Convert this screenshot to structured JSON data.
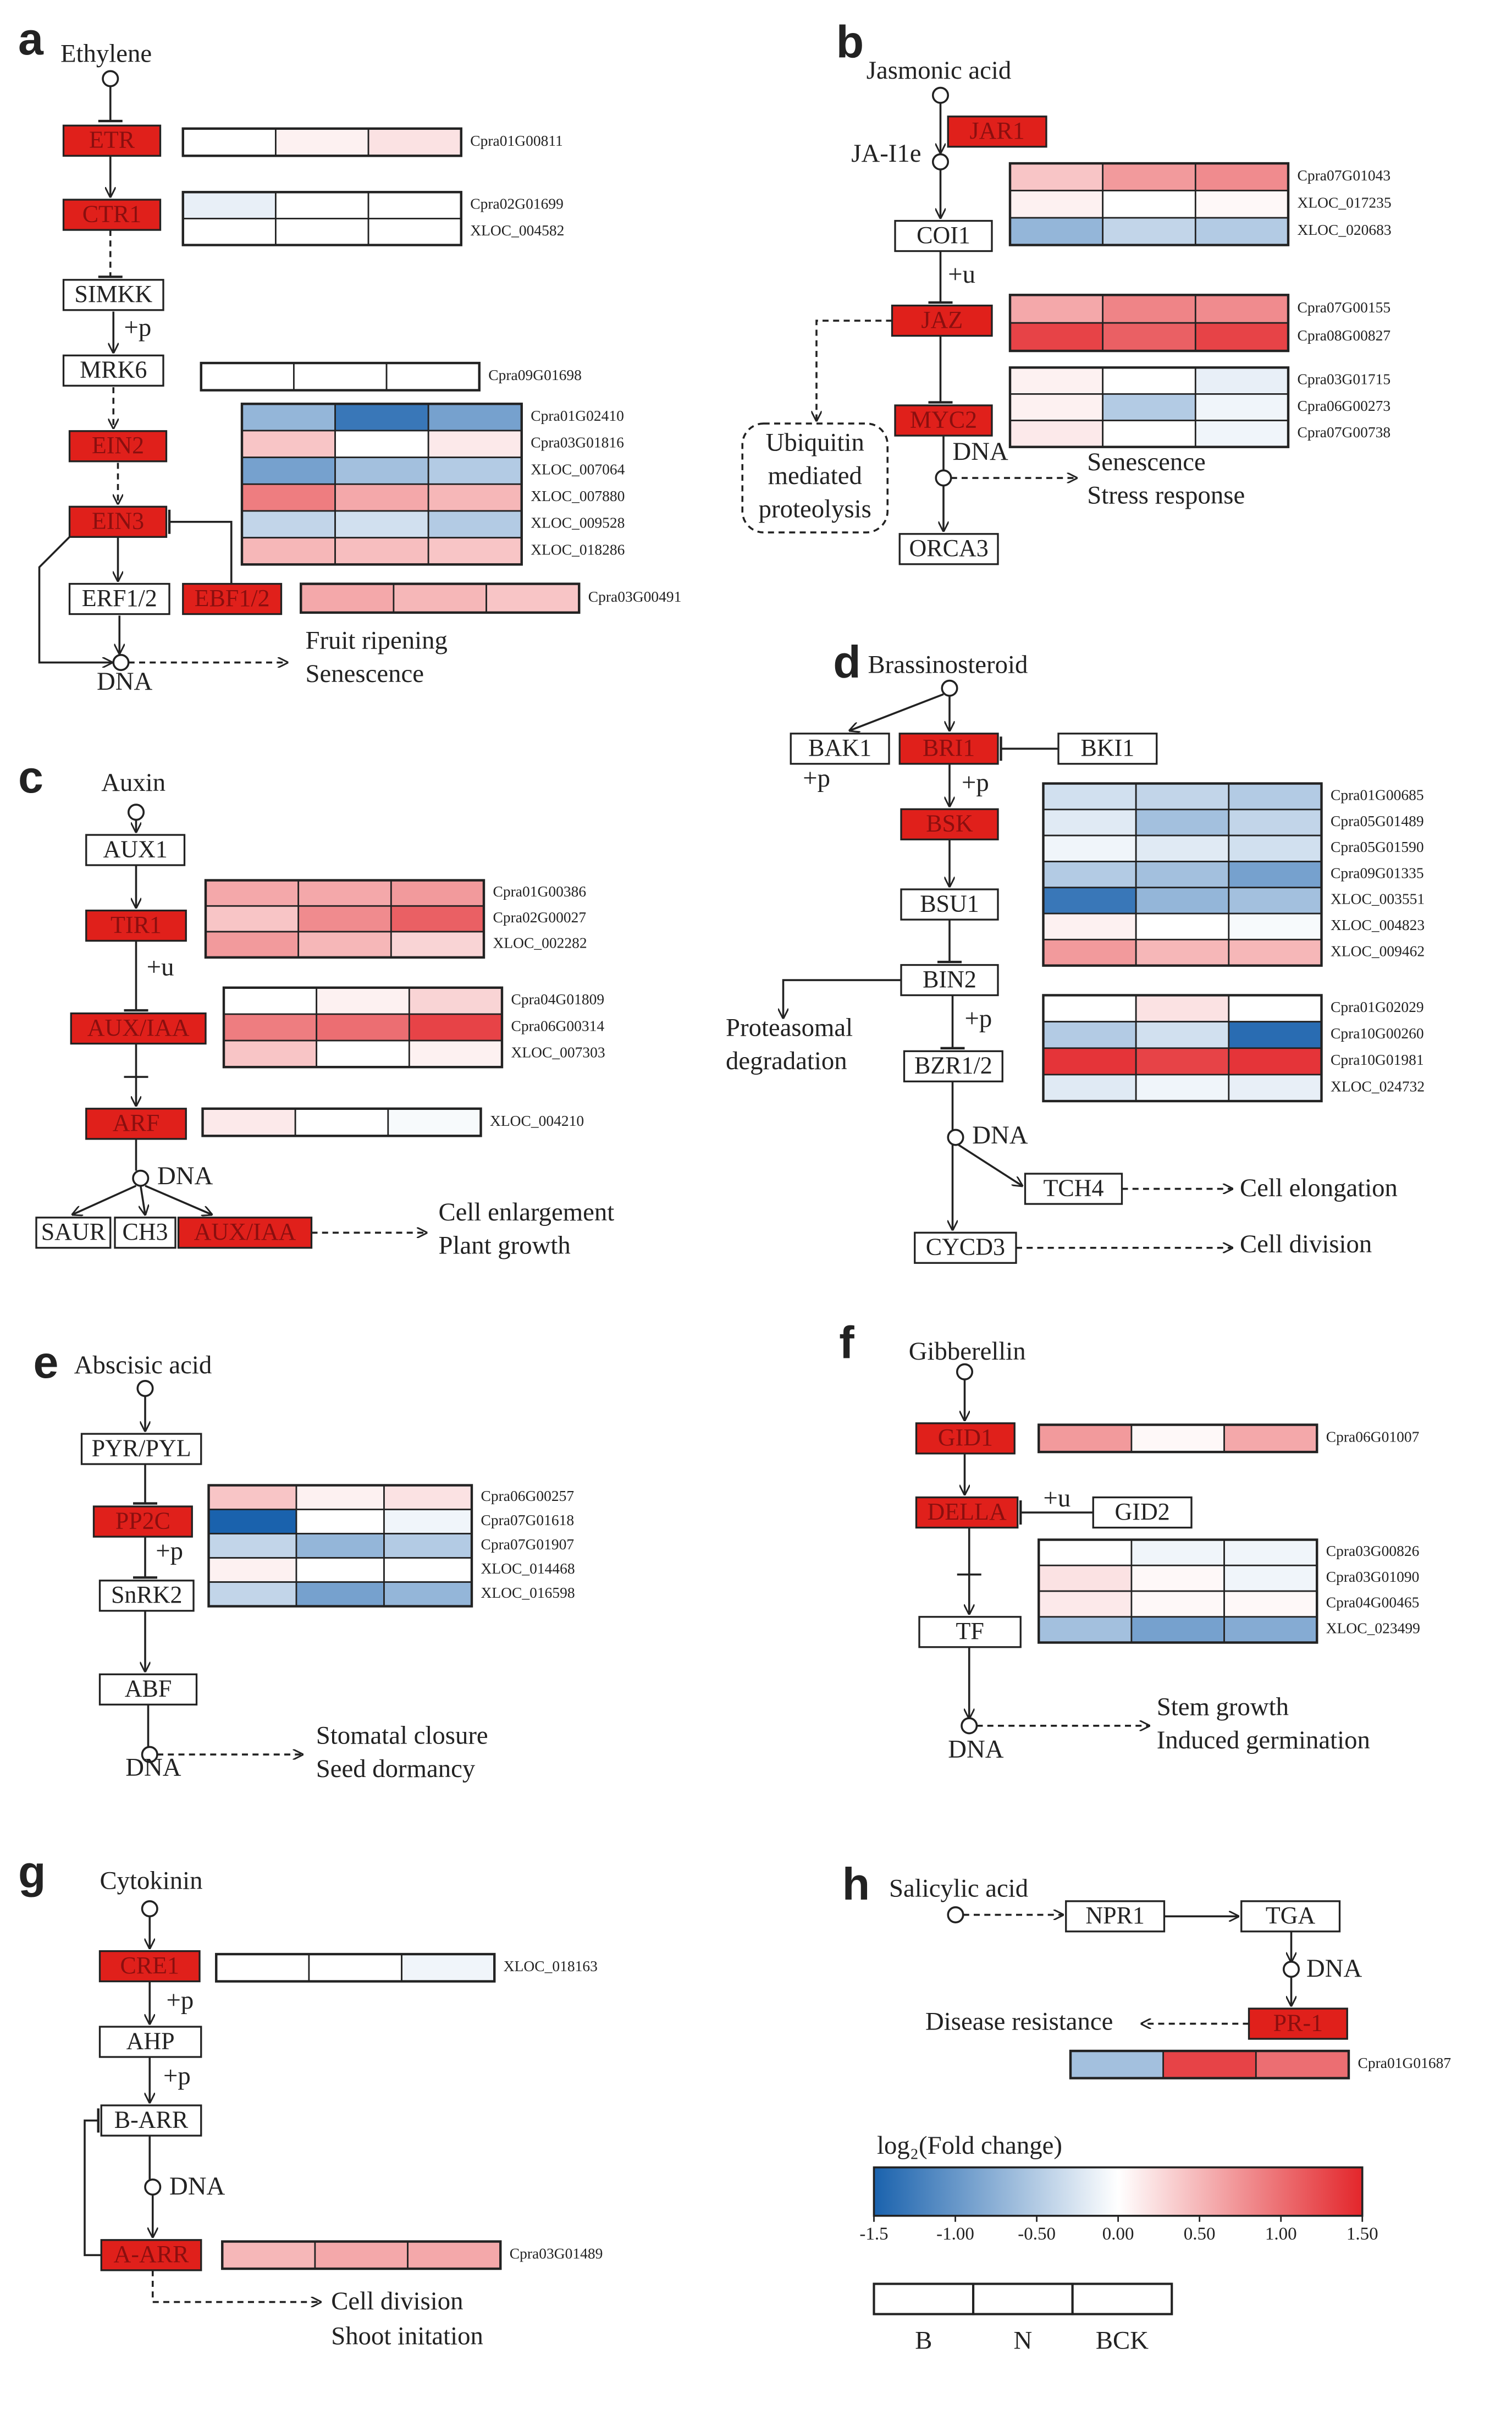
{
  "panels": [
    {
      "letter": "a",
      "labels": [
        "Ethylene",
        "+p",
        "DNA",
        "Fruit ripening",
        "Senescence"
      ],
      "nodes": [
        "ETR",
        "CTR1",
        "SIMKK",
        "MRK6",
        "EIN2",
        "EIN3",
        "ERF1/2",
        "EBF1/2"
      ],
      "heatmaps": [
        {
          "genes": [
            "Cpra01G00811"
          ],
          "values": [
            [
              0,
              0.1,
              0.2
            ]
          ]
        },
        {
          "genes": [
            "Cpra02G01699",
            "XLOC_004582"
          ],
          "values": [
            [
              -0.15,
              0,
              0
            ],
            [
              0,
              0,
              0
            ]
          ]
        },
        {
          "genes": [
            "Cpra09G01698"
          ],
          "values": [
            [
              0,
              0,
              0
            ]
          ]
        },
        {
          "genes": [
            "Cpra01G02410",
            "Cpra03G01816",
            "XLOC_007064",
            "XLOC_007880",
            "XLOC_009528",
            "XLOC_018286"
          ],
          "values": [
            [
              -0.7,
              -1.3,
              -0.9
            ],
            [
              0.4,
              0,
              0.15
            ],
            [
              -0.9,
              -0.6,
              -0.5
            ],
            [
              0.9,
              0.6,
              0.5
            ],
            [
              -0.4,
              -0.3,
              -0.5
            ],
            [
              0.5,
              0.45,
              0.4
            ]
          ]
        },
        {
          "genes": [
            "Cpra03G00491"
          ],
          "values": [
            [
              0.6,
              0.5,
              0.4
            ]
          ]
        }
      ]
    },
    {
      "letter": "b",
      "labels": [
        "Jasmonic acid",
        "JA-I1e",
        "+u",
        "Ubiquitin",
        "mediated",
        "proteolysis",
        "DNA",
        "Senescence",
        "Stress response"
      ],
      "nodes": [
        "JAR1",
        "COI1",
        "JAZ",
        "MYC2",
        "ORCA3"
      ],
      "heatmaps": [
        {
          "genes": [
            "Cpra07G01043",
            "XLOC_017235",
            "XLOC_020683"
          ],
          "values": [
            [
              0.4,
              0.7,
              0.8
            ],
            [
              0.1,
              0,
              0.05
            ],
            [
              -0.7,
              -0.4,
              -0.5
            ]
          ]
        },
        {
          "genes": [
            "Cpra07G00155",
            "Cpra08G00827"
          ],
          "values": [
            [
              0.6,
              0.85,
              0.8
            ],
            [
              1.3,
              1.1,
              1.3
            ]
          ]
        },
        {
          "genes": [
            "Cpra03G01715",
            "Cpra06G00273",
            "Cpra07G00738"
          ],
          "values": [
            [
              0.1,
              0,
              -0.15
            ],
            [
              0.1,
              -0.5,
              -0.1
            ],
            [
              0.15,
              0,
              -0.1
            ]
          ]
        }
      ]
    },
    {
      "letter": "c",
      "labels": [
        "Auxin",
        "+u",
        "DNA",
        "Cell enlargement",
        "Plant growth"
      ],
      "nodes": [
        "AUX1",
        "TIR1",
        "AUX/IAA",
        "ARF",
        "SAUR",
        "CH3",
        "AUX/IAA"
      ],
      "heatmaps": [
        {
          "genes": [
            "Cpra01G00386",
            "Cpra02G00027",
            "XLOC_002282"
          ],
          "values": [
            [
              0.6,
              0.6,
              0.7
            ],
            [
              0.4,
              0.8,
              1.1
            ],
            [
              0.7,
              0.5,
              0.3
            ]
          ]
        },
        {
          "genes": [
            "Cpra04G01809",
            "Cpra06G00314",
            "XLOC_007303"
          ],
          "values": [
            [
              0,
              0.1,
              0.3
            ],
            [
              0.9,
              1.0,
              1.3
            ],
            [
              0.4,
              0,
              0.1
            ]
          ]
        },
        {
          "genes": [
            "XLOC_004210"
          ],
          "values": [
            [
              0.15,
              0,
              -0.05
            ]
          ]
        }
      ]
    },
    {
      "letter": "d",
      "labels": [
        "Brassinosteroid",
        "+p",
        "+p",
        "Proteasomal",
        "degradation",
        "+p",
        "DNA",
        "Cell elongation",
        "Cell division"
      ],
      "nodes": [
        "BAK1",
        "BRI1",
        "BKI1",
        "BSK",
        "BSU1",
        "BIN2",
        "BZR1/2",
        "TCH4",
        "CYCD3"
      ],
      "heatmaps": [
        {
          "genes": [
            "Cpra01G00685",
            "Cpra05G01489",
            "Cpra05G01590",
            "Cpra09G01335",
            "XLOC_003551",
            "XLOC_004823",
            "XLOC_009462"
          ],
          "values": [
            [
              -0.3,
              -0.4,
              -0.5
            ],
            [
              -0.2,
              -0.6,
              -0.4
            ],
            [
              -0.1,
              -0.2,
              -0.3
            ],
            [
              -0.5,
              -0.6,
              -0.9
            ],
            [
              -1.3,
              -0.7,
              -0.6
            ],
            [
              0.1,
              0,
              -0.05
            ],
            [
              0.7,
              0.5,
              0.5
            ]
          ]
        },
        {
          "genes": [
            "Cpra01G02029",
            "Cpra10G00260",
            "Cpra10G01981",
            "XLOC_024732"
          ],
          "values": [
            [
              0,
              0.2,
              0
            ],
            [
              -0.5,
              -0.3,
              -1.4
            ],
            [
              1.4,
              1.3,
              1.4
            ],
            [
              -0.2,
              -0.1,
              -0.15
            ]
          ]
        }
      ]
    },
    {
      "letter": "e",
      "labels": [
        "Abscisic acid",
        "+p",
        "DNA",
        "Stomatal closure",
        "Seed dormancy"
      ],
      "nodes": [
        "PYR/PYL",
        "PP2C",
        "SnRK2",
        "ABF"
      ],
      "heatmaps": [
        {
          "genes": [
            "Cpra06G00257",
            "Cpra07G01618",
            "Cpra07G01907",
            "XLOC_014468",
            "XLOC_016598"
          ],
          "values": [
            [
              0.4,
              0.1,
              0.2
            ],
            [
              -1.5,
              0,
              -0.1
            ],
            [
              -0.4,
              -0.7,
              -0.5
            ],
            [
              0.1,
              0,
              0
            ],
            [
              -0.4,
              -0.9,
              -0.7
            ]
          ]
        }
      ]
    },
    {
      "letter": "f",
      "labels": [
        "Gibberellin",
        "+u",
        "DNA",
        "Stem growth",
        "Induced germination"
      ],
      "nodes": [
        "GID1",
        "DELLA",
        "GID2",
        "TF"
      ],
      "heatmaps": [
        {
          "genes": [
            "Cpra06G01007"
          ],
          "values": [
            [
              0.7,
              0.05,
              0.6
            ]
          ]
        },
        {
          "genes": [
            "Cpra03G00826",
            "Cpra03G01090",
            "Cpra04G00465",
            "XLOC_023499"
          ],
          "values": [
            [
              0,
              -0.1,
              -0.1
            ],
            [
              0.2,
              0.05,
              -0.1
            ],
            [
              0.15,
              0.05,
              0.05
            ],
            [
              -0.6,
              -0.9,
              -0.8
            ]
          ]
        }
      ]
    },
    {
      "letter": "g",
      "labels": [
        "Cytokinin",
        "+p",
        "+p",
        "DNA",
        "Cell division",
        "Shoot initation"
      ],
      "nodes": [
        "CRE1",
        "AHP",
        "B-ARR",
        "A-ARR"
      ],
      "heatmaps": [
        {
          "genes": [
            "XLOC_018163"
          ],
          "values": [
            [
              0,
              0,
              -0.1
            ]
          ]
        },
        {
          "genes": [
            "Cpra03G01489"
          ],
          "values": [
            [
              0.5,
              0.6,
              0.6
            ]
          ]
        }
      ]
    },
    {
      "letter": "h",
      "labels": [
        "Salicylic acid",
        "DNA",
        "Disease resistance"
      ],
      "nodes": [
        "NPR1",
        "TGA",
        "PR-1"
      ],
      "heatmaps": [
        {
          "genes": [
            "Cpra01G01687"
          ],
          "values": [
            [
              -0.6,
              1.3,
              1.0
            ]
          ]
        }
      ]
    }
  ],
  "legend": {
    "title": "log₂(Fold change)",
    "lim": [
      -1.5,
      1.5
    ],
    "ticks": [
      -1.5,
      {
        "value": -1,
        "label": "-1.00"
      },
      {
        "value": -0.5,
        "label": "-0.50"
      },
      {
        "value": 0,
        "label": "0.00"
      },
      {
        "value": 0.5,
        "label": "0.50"
      },
      {
        "value": 1,
        "label": "1.00"
      },
      {
        "value": 1.5,
        "label": "1.50"
      }
    ],
    "colors": [
      "#1a62ad",
      "#ffffff",
      "#e3262b"
    ],
    "columns": [
      "B",
      "N",
      "BCK"
    ]
  }
}
